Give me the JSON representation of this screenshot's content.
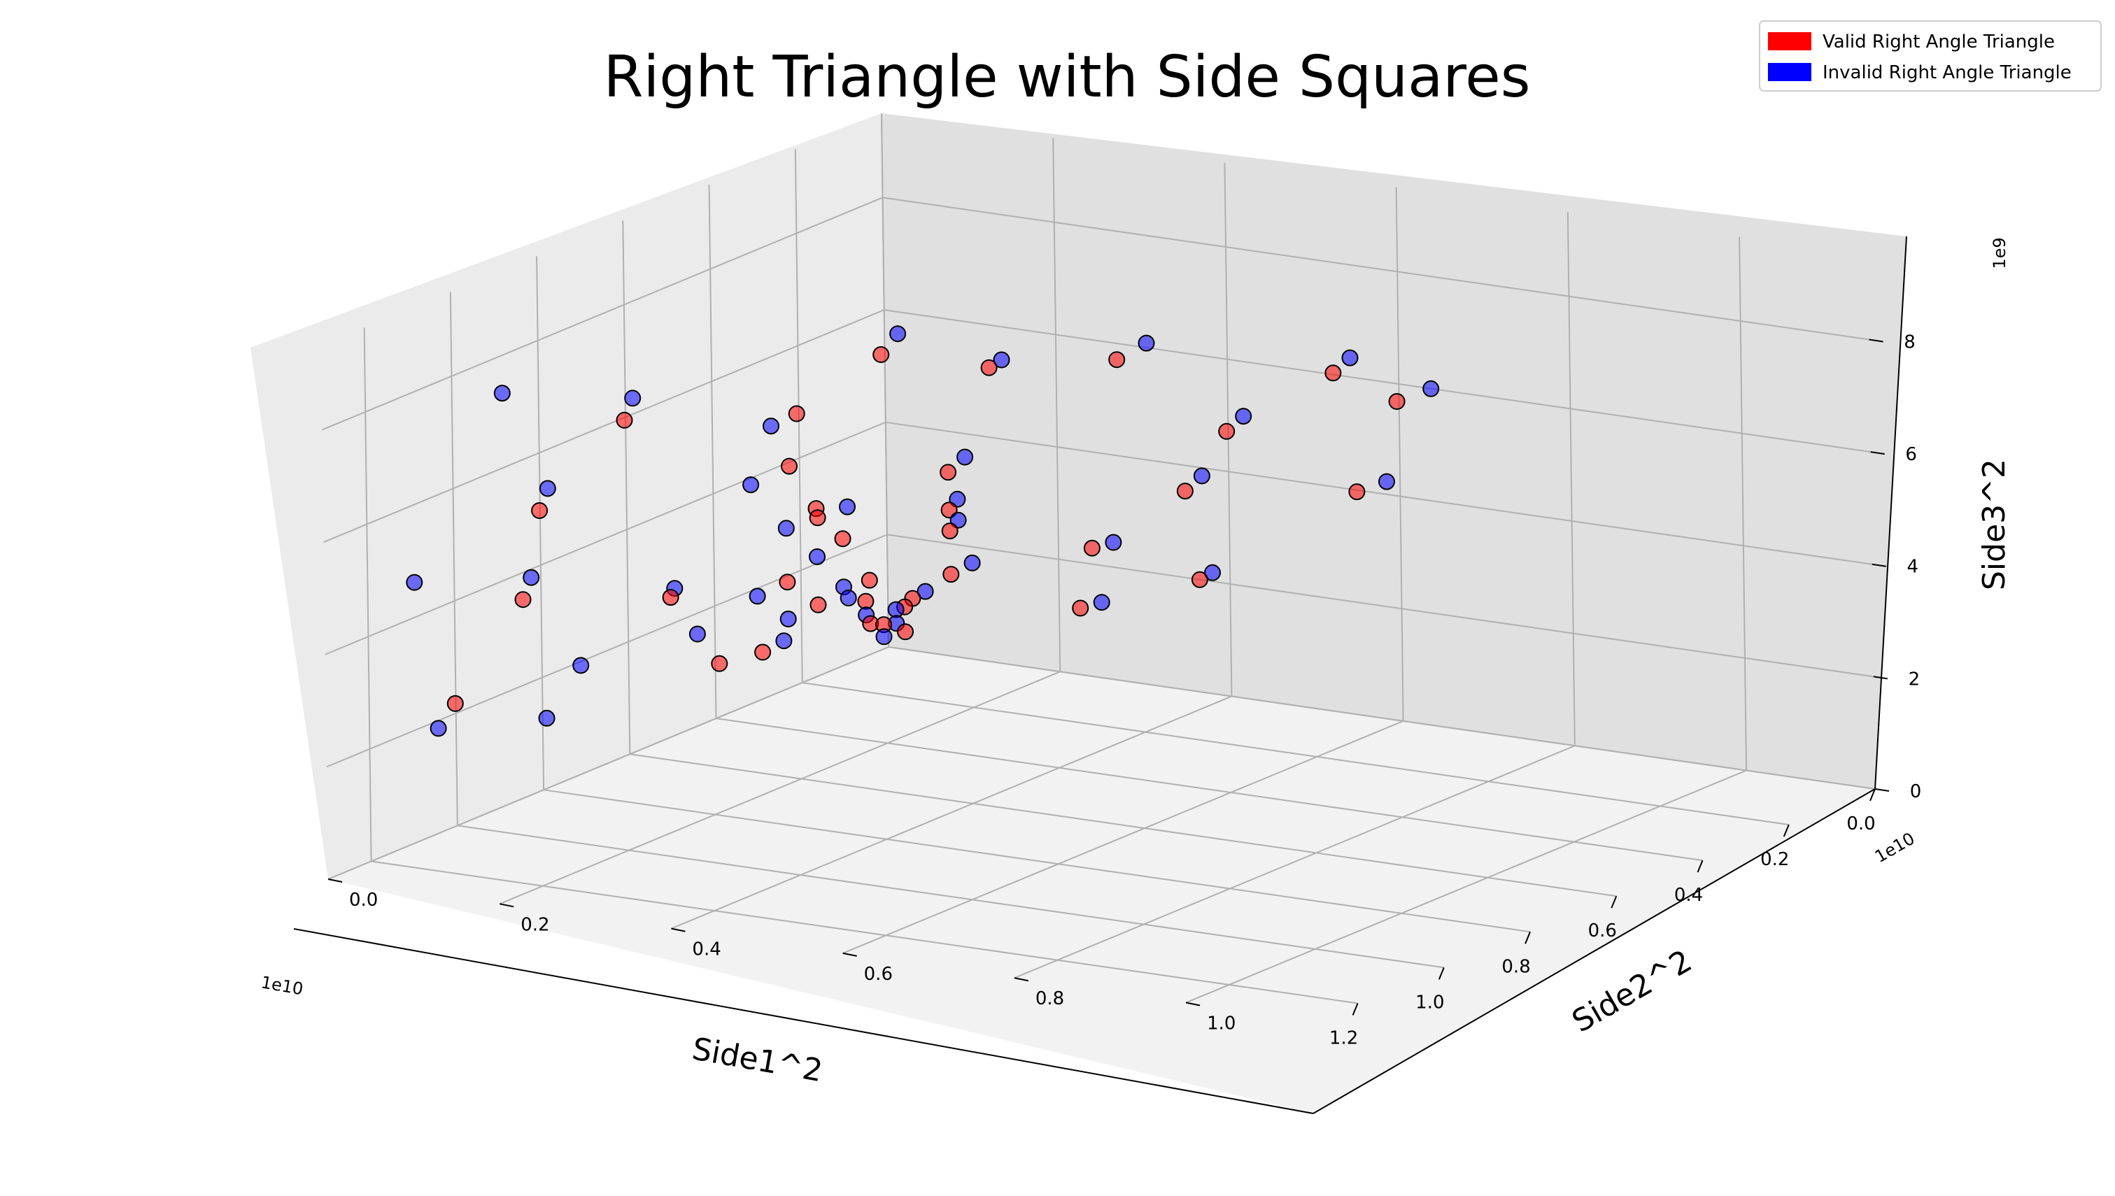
{
  "chart_data": {
    "type": "scatter",
    "projection": "3d",
    "title": "Right Triangle with Side Squares",
    "xlabel": "Side1^2",
    "ylabel": "Side2^2",
    "zlabel": "Side3^2",
    "x_offset_label": "1e10",
    "y_offset_label": "1e10",
    "z_offset_label": "1e9",
    "x_ticks": [
      "0.0",
      "0.2",
      "0.4",
      "0.6",
      "0.8",
      "1.0",
      "1.2"
    ],
    "y_ticks": [
      "0.0",
      "0.2",
      "0.4",
      "0.6",
      "0.8",
      "1.0"
    ],
    "z_ticks": [
      "0",
      "2",
      "4",
      "6",
      "8"
    ],
    "xlim": [
      0,
      1.3
    ],
    "ylim": [
      0,
      1.15
    ],
    "zlim": [
      0,
      9.5
    ],
    "grid": true,
    "legend_position": "top-right",
    "series": [
      {
        "name": "Valid Right Angle Triangle",
        "color": "#ff0000",
        "points": [
          [
            0.02,
            0.03,
            0.4
          ],
          [
            0.05,
            0.02,
            0.6
          ],
          [
            0.08,
            0.06,
            1.1
          ],
          [
            0.1,
            0.03,
            0.8
          ],
          [
            0.15,
            0.05,
            1.4
          ],
          [
            0.2,
            0.08,
            2.0
          ],
          [
            0.24,
            0.04,
            1.6
          ],
          [
            0.3,
            0.1,
            3.1
          ],
          [
            0.35,
            0.06,
            2.4
          ],
          [
            0.4,
            0.12,
            4.0
          ],
          [
            0.45,
            0.03,
            1.2
          ],
          [
            0.52,
            0.15,
            5.2
          ],
          [
            0.6,
            0.2,
            6.5
          ],
          [
            0.15,
            0.15,
            2.1
          ],
          [
            0.25,
            0.2,
            3.3
          ],
          [
            0.35,
            0.25,
            4.1
          ],
          [
            0.45,
            0.3,
            5.2
          ],
          [
            0.12,
            0.3,
            2.8
          ],
          [
            0.2,
            0.45,
            4.4
          ],
          [
            0.3,
            0.55,
            6.0
          ],
          [
            0.55,
            0.4,
            7.6
          ],
          [
            0.7,
            0.35,
            8.2
          ],
          [
            0.8,
            0.1,
            6.8
          ],
          [
            0.9,
            0.05,
            5.4
          ],
          [
            1.0,
            0.08,
            4.2
          ],
          [
            1.1,
            0.05,
            2.6
          ],
          [
            0.25,
            0.65,
            7.1
          ],
          [
            0.65,
            0.6,
            8.5
          ],
          [
            0.1,
            0.6,
            4.4
          ],
          [
            0.4,
            0.8,
            7.4
          ],
          [
            0.95,
            0.4,
            6.2
          ],
          [
            0.18,
            0.12,
            1.7
          ],
          [
            0.33,
            0.02,
            1.0
          ],
          [
            0.05,
            0.25,
            1.4
          ],
          [
            0.07,
            0.4,
            2.3
          ],
          [
            0.6,
            0.05,
            2.9
          ]
        ]
      },
      {
        "name": "Invalid Right Angle Triangle",
        "color": "#0000ff",
        "points": [
          [
            0.03,
            0.01,
            0.3
          ],
          [
            0.06,
            0.04,
            0.7
          ],
          [
            0.09,
            0.02,
            0.9
          ],
          [
            0.12,
            0.07,
            1.2
          ],
          [
            0.17,
            0.04,
            1.5
          ],
          [
            0.22,
            0.06,
            1.9
          ],
          [
            0.27,
            0.02,
            1.4
          ],
          [
            0.32,
            0.08,
            2.8
          ],
          [
            0.38,
            0.04,
            2.2
          ],
          [
            0.43,
            0.1,
            3.7
          ],
          [
            0.48,
            0.02,
            1.8
          ],
          [
            0.55,
            0.12,
            4.9
          ],
          [
            0.62,
            0.18,
            6.3
          ],
          [
            0.16,
            0.18,
            2.4
          ],
          [
            0.27,
            0.22,
            3.6
          ],
          [
            0.37,
            0.27,
            4.4
          ],
          [
            0.47,
            0.33,
            5.6
          ],
          [
            0.13,
            0.33,
            3.0
          ],
          [
            0.22,
            0.48,
            4.8
          ],
          [
            0.32,
            0.58,
            6.4
          ],
          [
            0.58,
            0.43,
            7.9
          ],
          [
            0.72,
            0.38,
            8.7
          ],
          [
            0.82,
            0.12,
            7.3
          ],
          [
            0.92,
            0.07,
            5.9
          ],
          [
            1.02,
            0.1,
            4.7
          ],
          [
            1.12,
            0.04,
            2.2
          ],
          [
            1.25,
            0.08,
            5.3
          ],
          [
            1.18,
            0.15,
            8.6
          ],
          [
            0.27,
            0.68,
            7.5
          ],
          [
            0.68,
            0.65,
            9.0
          ],
          [
            0.11,
            0.64,
            4.7
          ],
          [
            0.42,
            0.85,
            7.8
          ],
          [
            0.98,
            0.45,
            6.6
          ],
          [
            0.19,
            0.14,
            1.9
          ],
          [
            0.34,
            0.05,
            1.3
          ],
          [
            0.06,
            0.28,
            1.6
          ],
          [
            0.08,
            0.42,
            2.5
          ],
          [
            0.63,
            0.07,
            3.2
          ],
          [
            0.75,
            0.02,
            2.1
          ],
          [
            0.85,
            0.03,
            1.5
          ]
        ]
      }
    ]
  }
}
